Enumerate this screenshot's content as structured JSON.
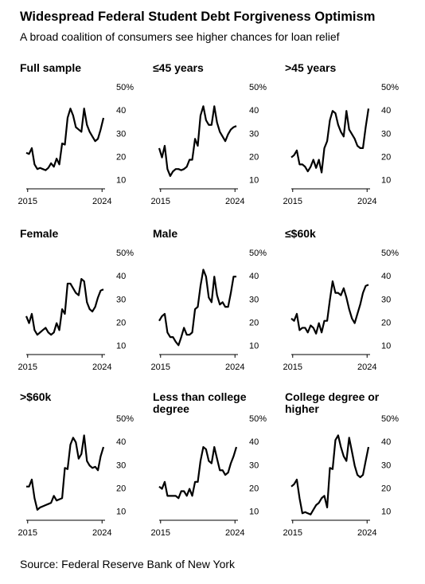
{
  "title": "Widespread Federal Student Debt Forgiveness Optimism",
  "subtitle": "A broad coalition of consumers see higher chances for loan relief",
  "source": "Source: Federal Reserve Bank of New York",
  "chart_data": [
    {
      "type": "line",
      "title": "Full sample",
      "color": "#000000",
      "x": [
        2014.83,
        2015.17,
        2015.5,
        2015.83,
        2016.17,
        2016.5,
        2016.83,
        2017.17,
        2017.5,
        2017.83,
        2018.17,
        2018.5,
        2018.83,
        2019.17,
        2019.5,
        2019.83,
        2020.17,
        2020.5,
        2020.83,
        2021.17,
        2021.5,
        2021.83,
        2022.17,
        2022.5,
        2022.83,
        2023.17,
        2023.5,
        2023.83,
        2024.17
      ],
      "values": [
        22,
        21.5,
        24,
        17,
        15,
        15.5,
        15,
        14.5,
        15.5,
        17.5,
        16,
        19.5,
        17,
        26,
        25.5,
        37,
        41,
        38,
        33,
        32,
        31,
        41,
        34,
        31,
        29,
        27,
        28,
        32,
        37
      ],
      "xlim": [
        2014.83,
        2024.17
      ],
      "xticks": [
        2015,
        2024
      ],
      "ylim": [
        6.5,
        50
      ],
      "yticks": [
        10,
        20,
        30,
        40,
        {
          "value": 50,
          "label": "50%"
        }
      ]
    },
    {
      "type": "line",
      "title": "≤45 years",
      "color": "#000000",
      "x": [
        2014.83,
        2015.17,
        2015.5,
        2015.83,
        2016.17,
        2016.5,
        2016.83,
        2017.17,
        2017.5,
        2017.83,
        2018.17,
        2018.5,
        2018.83,
        2019.17,
        2019.5,
        2019.83,
        2020.17,
        2020.5,
        2020.83,
        2021.17,
        2021.5,
        2021.83,
        2022.17,
        2022.5,
        2022.83,
        2023.17,
        2023.5,
        2023.83,
        2024.17
      ],
      "values": [
        24,
        20,
        25,
        15,
        12,
        14,
        15,
        15,
        14.5,
        15,
        16,
        19,
        19,
        28,
        25,
        38,
        42,
        36,
        34,
        34,
        42,
        35,
        31,
        29,
        27,
        30,
        32,
        33,
        33.5
      ],
      "xlim": [
        2014.83,
        2024.17
      ],
      "xticks": [
        2015,
        2024
      ],
      "ylim": [
        6.5,
        50
      ],
      "yticks": [
        10,
        20,
        30,
        40,
        {
          "value": 50,
          "label": "50%"
        }
      ]
    },
    {
      "type": "line",
      "title": ">45 years",
      "color": "#000000",
      "x": [
        2014.83,
        2015.17,
        2015.5,
        2015.83,
        2016.17,
        2016.5,
        2016.83,
        2017.17,
        2017.5,
        2017.83,
        2018.17,
        2018.5,
        2018.83,
        2019.17,
        2019.5,
        2019.83,
        2020.17,
        2020.5,
        2020.83,
        2021.17,
        2021.5,
        2021.83,
        2022.17,
        2022.5,
        2022.83,
        2023.17,
        2023.5,
        2023.83,
        2024.17
      ],
      "values": [
        20,
        21,
        23,
        17,
        17,
        16,
        14,
        16,
        19,
        15.5,
        19,
        13.5,
        24,
        27,
        36,
        40,
        39,
        34,
        31,
        29,
        40,
        32,
        30,
        28,
        25,
        24,
        24,
        33,
        41
      ],
      "xlim": [
        2014.83,
        2024.17
      ],
      "xticks": [
        2015,
        2024
      ],
      "ylim": [
        6.5,
        50
      ],
      "yticks": [
        10,
        20,
        30,
        40,
        {
          "value": 50,
          "label": "50%"
        }
      ]
    },
    {
      "type": "line",
      "title": "Female",
      "color": "#000000",
      "x": [
        2014.83,
        2015.17,
        2015.5,
        2015.83,
        2016.17,
        2016.5,
        2016.83,
        2017.17,
        2017.5,
        2017.83,
        2018.17,
        2018.5,
        2018.83,
        2019.17,
        2019.5,
        2019.83,
        2020.17,
        2020.5,
        2020.83,
        2021.17,
        2021.5,
        2021.83,
        2022.17,
        2022.5,
        2022.83,
        2023.17,
        2023.5,
        2023.83,
        2024.17
      ],
      "values": [
        23,
        20,
        24,
        17,
        15,
        16,
        17,
        18,
        16,
        15,
        16,
        20,
        17,
        26,
        24,
        37,
        37,
        35,
        33,
        32,
        39,
        38,
        29,
        26,
        25,
        27,
        31,
        34,
        34.5
      ],
      "xlim": [
        2014.83,
        2024.17
      ],
      "xticks": [
        2015,
        2024
      ],
      "ylim": [
        6.5,
        50
      ],
      "yticks": [
        10,
        20,
        30,
        40,
        {
          "value": 50,
          "label": "50%"
        }
      ]
    },
    {
      "type": "line",
      "title": "Male",
      "color": "#000000",
      "x": [
        2014.83,
        2015.17,
        2015.5,
        2015.83,
        2016.17,
        2016.5,
        2016.83,
        2017.17,
        2017.5,
        2017.83,
        2018.17,
        2018.5,
        2018.83,
        2019.17,
        2019.5,
        2019.83,
        2020.17,
        2020.5,
        2020.83,
        2021.17,
        2021.5,
        2021.83,
        2022.17,
        2022.5,
        2022.83,
        2023.17,
        2023.5,
        2023.83,
        2024.17
      ],
      "values": [
        21,
        23,
        24,
        16,
        14,
        14,
        12,
        10.5,
        14,
        18,
        15,
        15,
        16,
        26,
        27,
        36,
        43,
        40,
        31,
        29,
        40,
        32,
        28,
        29,
        27,
        27,
        33,
        40,
        40
      ],
      "xlim": [
        2014.83,
        2024.17
      ],
      "xticks": [
        2015,
        2024
      ],
      "ylim": [
        6.5,
        50
      ],
      "yticks": [
        10,
        20,
        30,
        40,
        {
          "value": 50,
          "label": "50%"
        }
      ]
    },
    {
      "type": "line",
      "title": "≤$60k",
      "color": "#000000",
      "x": [
        2014.83,
        2015.17,
        2015.5,
        2015.83,
        2016.17,
        2016.5,
        2016.83,
        2017.17,
        2017.5,
        2017.83,
        2018.17,
        2018.5,
        2018.83,
        2019.17,
        2019.5,
        2019.83,
        2020.17,
        2020.5,
        2020.83,
        2021.17,
        2021.5,
        2021.83,
        2022.17,
        2022.5,
        2022.83,
        2023.17,
        2023.5,
        2023.83,
        2024.17
      ],
      "values": [
        22,
        21,
        24,
        17,
        18,
        18,
        16,
        19,
        18,
        15.5,
        20,
        16,
        21,
        21,
        30,
        38,
        33,
        33,
        32,
        35,
        31,
        26,
        22,
        20,
        24,
        28,
        33,
        36,
        36.5
      ],
      "xlim": [
        2014.83,
        2024.17
      ],
      "xticks": [
        2015,
        2024
      ],
      "ylim": [
        6.5,
        50
      ],
      "yticks": [
        10,
        20,
        30,
        40,
        {
          "value": 50,
          "label": "50%"
        }
      ]
    },
    {
      "type": "line",
      "title": ">$60k",
      "color": "#000000",
      "x": [
        2014.83,
        2015.17,
        2015.5,
        2015.83,
        2016.17,
        2016.5,
        2016.83,
        2017.17,
        2017.5,
        2017.83,
        2018.17,
        2018.5,
        2018.83,
        2019.17,
        2019.5,
        2019.83,
        2020.17,
        2020.5,
        2020.83,
        2021.17,
        2021.5,
        2021.83,
        2022.17,
        2022.5,
        2022.83,
        2023.17,
        2023.5,
        2023.83,
        2024.17
      ],
      "values": [
        21,
        21,
        24,
        16,
        11,
        12,
        12.5,
        13,
        13.5,
        14,
        17,
        15,
        15.5,
        16,
        29,
        28.5,
        39,
        42,
        40,
        33,
        35,
        43,
        32,
        30,
        29,
        29.5,
        28,
        34,
        38
      ],
      "xlim": [
        2014.83,
        2024.17
      ],
      "xticks": [
        2015,
        2024
      ],
      "ylim": [
        6.5,
        50
      ],
      "yticks": [
        10,
        20,
        30,
        40,
        {
          "value": 50,
          "label": "50%"
        }
      ]
    },
    {
      "type": "line",
      "title": "Less than college degree",
      "color": "#000000",
      "x": [
        2014.83,
        2015.17,
        2015.5,
        2015.83,
        2016.17,
        2016.5,
        2016.83,
        2017.17,
        2017.5,
        2017.83,
        2018.17,
        2018.5,
        2018.83,
        2019.17,
        2019.5,
        2019.83,
        2020.17,
        2020.5,
        2020.83,
        2021.17,
        2021.5,
        2021.83,
        2022.17,
        2022.5,
        2022.83,
        2023.17,
        2023.5,
        2023.83,
        2024.17
      ],
      "values": [
        21,
        20,
        23,
        17,
        17,
        17,
        17,
        16,
        19,
        19,
        17,
        20,
        17,
        23,
        23,
        32,
        38,
        37,
        32,
        31,
        38,
        33,
        28,
        28,
        26,
        27,
        31,
        34,
        38
      ],
      "xlim": [
        2014.83,
        2024.17
      ],
      "xticks": [
        2015,
        2024
      ],
      "ylim": [
        6.5,
        50
      ],
      "yticks": [
        10,
        20,
        30,
        40,
        {
          "value": 50,
          "label": "50%"
        }
      ]
    },
    {
      "type": "line",
      "title": "College degree or higher",
      "color": "#000000",
      "x": [
        2014.83,
        2015.17,
        2015.5,
        2015.83,
        2016.17,
        2016.5,
        2016.83,
        2017.17,
        2017.5,
        2017.83,
        2018.17,
        2018.5,
        2018.83,
        2019.17,
        2019.5,
        2019.83,
        2020.17,
        2020.5,
        2020.83,
        2021.17,
        2021.5,
        2021.83,
        2022.17,
        2022.5,
        2022.83,
        2023.17,
        2023.5,
        2023.83,
        2024.17
      ],
      "values": [
        21,
        22,
        24,
        16,
        9.5,
        10,
        9.5,
        9,
        11,
        13,
        14,
        16,
        17,
        12,
        29,
        28.5,
        41,
        43,
        38,
        34,
        32,
        42,
        36,
        30,
        26,
        25,
        26,
        32,
        38
      ],
      "xlim": [
        2014.83,
        2024.17
      ],
      "xticks": [
        2015,
        2024
      ],
      "ylim": [
        6.5,
        50
      ],
      "yticks": [
        10,
        20,
        30,
        40,
        {
          "value": 50,
          "label": "50%"
        }
      ]
    }
  ]
}
